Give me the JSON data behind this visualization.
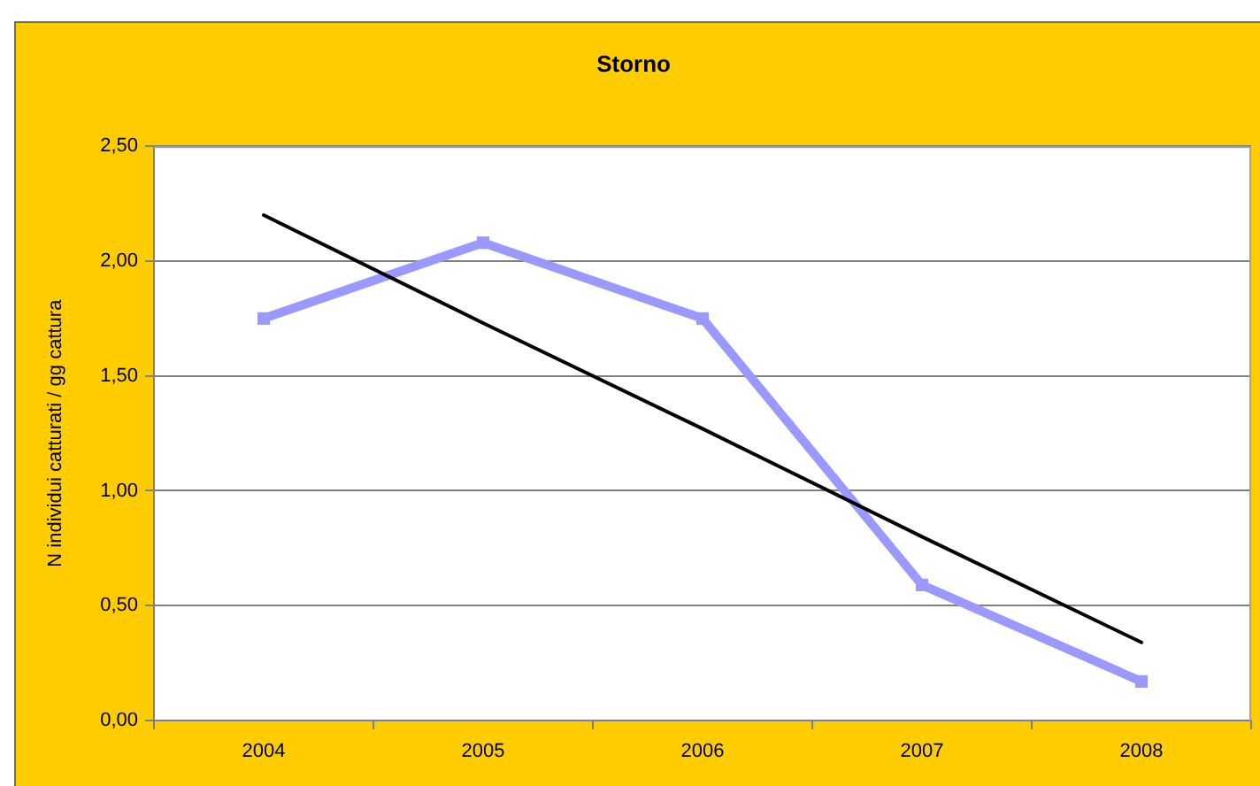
{
  "chart_data": {
    "type": "line",
    "title": "Storno",
    "ylabel": "N individui catturati / gg cattura",
    "categories": [
      "2004",
      "2005",
      "2006",
      "2007",
      "2008"
    ],
    "series": [
      {
        "color": "#9999ff",
        "values": [
          1.75,
          2.08,
          1.75,
          0.59,
          0.17
        ],
        "marker": "square"
      },
      {
        "type": "line",
        "color": "#000000",
        "values": [
          2.2,
          1.73,
          1.27,
          0.8,
          0.34
        ],
        "marker": "none"
      }
    ],
    "ylim": [
      0,
      2.5
    ],
    "yticks": [
      {
        "value": 0,
        "label": "0,00"
      },
      {
        "value": 0.5,
        "label": "0,50"
      },
      {
        "value": 1,
        "label": "1,00"
      },
      {
        "value": 1.5,
        "label": "1,50"
      },
      {
        "value": 2,
        "label": "2,00"
      },
      {
        "value": 2.5,
        "label": "2,50"
      }
    ],
    "grid": "y",
    "line_style": "solid"
  }
}
